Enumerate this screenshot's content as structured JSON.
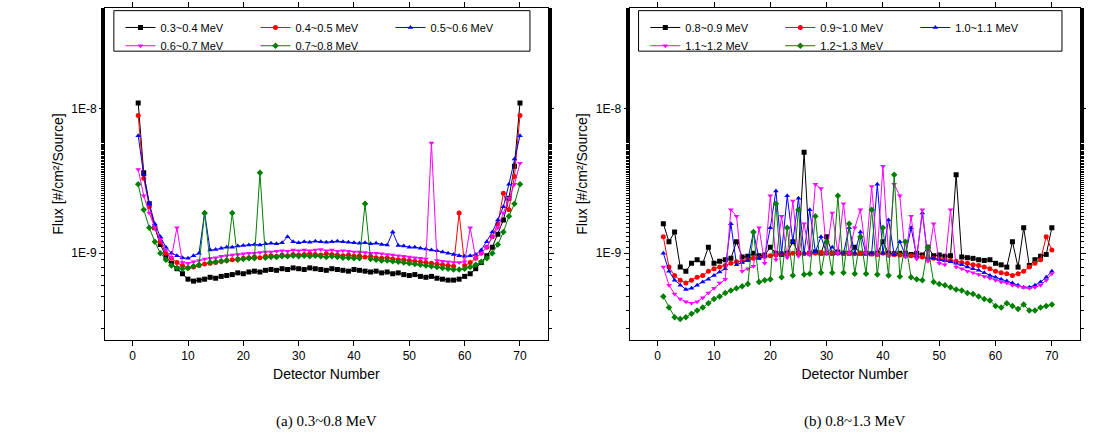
{
  "chart_data": [
    {
      "type": "line",
      "title": "(a) 0.3~0.8 MeV",
      "xlabel": "Detector Number",
      "ylabel": "Flux [#/cm²/Source]",
      "log": "y",
      "grid": false,
      "legend": "top",
      "xlim": [
        -5,
        75
      ],
      "xticks": [
        0,
        10,
        20,
        30,
        40,
        50,
        60,
        70
      ],
      "ylim": [
        2.5e-10,
        5e-08
      ],
      "yticks": [
        {
          "value": 1e-09,
          "label": "1E-9"
        },
        {
          "value": 1e-08,
          "label": "1E-8"
        }
      ],
      "x": [
        1,
        2,
        3,
        4,
        5,
        6,
        7,
        8,
        9,
        10,
        11,
        12,
        13,
        14,
        15,
        16,
        17,
        18,
        19,
        20,
        21,
        22,
        23,
        24,
        25,
        26,
        27,
        28,
        29,
        30,
        31,
        32,
        33,
        34,
        35,
        36,
        37,
        38,
        39,
        40,
        41,
        42,
        43,
        44,
        45,
        46,
        47,
        48,
        49,
        50,
        51,
        52,
        53,
        54,
        55,
        56,
        57,
        58,
        59,
        60,
        61,
        62,
        63,
        64,
        65,
        66,
        67,
        68,
        69,
        70
      ],
      "series": [
        {
          "name": "0.3~0.4 MeV",
          "color": "#000000",
          "marker": "square",
          "values": [
            1.1e-08,
            3.6e-09,
            2.2e-09,
            1.5e-09,
            1.15e-09,
            9.5e-10,
            8.5e-10,
            7.8e-10,
            7.2e-10,
            6.6e-10,
            6.4e-10,
            6.5e-10,
            6.6e-10,
            6.8e-10,
            6.7e-10,
            6.9e-10,
            7e-10,
            7.1e-10,
            7.3e-10,
            7.2e-10,
            7.4e-10,
            7.5e-10,
            7.4e-10,
            7.6e-10,
            7.7e-10,
            7.6e-10,
            7.8e-10,
            7.7e-10,
            7.9e-10,
            7.8e-10,
            7.7e-10,
            7.9e-10,
            7.8e-10,
            7.7e-10,
            7.6e-10,
            7.8e-10,
            7.7e-10,
            7.6e-10,
            7.5e-10,
            7.7e-10,
            7.6e-10,
            7.5e-10,
            7.4e-10,
            7.5e-10,
            7.3e-10,
            7.4e-10,
            7.2e-10,
            7.3e-10,
            7.1e-10,
            7e-10,
            7.1e-10,
            6.9e-10,
            6.8e-10,
            6.9e-10,
            6.7e-10,
            6.6e-10,
            6.5e-10,
            6.5e-10,
            6.6e-10,
            6.9e-10,
            7.2e-10,
            7.8e-10,
            8.6e-10,
            9.6e-10,
            1.1e-09,
            1.35e-09,
            1.7e-09,
            2.4e-09,
            4e-09,
            1.1e-08
          ]
        },
        {
          "name": "0.4~0.5 MeV",
          "color": "#ff0000",
          "marker": "circle",
          "values": [
            9e-09,
            3.3e-09,
            2.1e-09,
            1.5e-09,
            1.2e-09,
            1e-09,
            9.2e-10,
            8.6e-10,
            8.2e-10,
            7.9e-10,
            8e-10,
            8.2e-10,
            8.4e-10,
            8.5e-10,
            8.6e-10,
            8.8e-10,
            8.9e-10,
            9e-10,
            9.1e-10,
            9.2e-10,
            9.3e-10,
            9.4e-10,
            9.3e-10,
            9.5e-10,
            9.6e-10,
            9.5e-10,
            9.7e-10,
            9.6e-10,
            9.8e-10,
            9.7e-10,
            9.8e-10,
            9.9e-10,
            9.8e-10,
            9.7e-10,
            9.9e-10,
            9.8e-10,
            9.7e-10,
            9.6e-10,
            9.7e-10,
            9.5e-10,
            9.6e-10,
            9.4e-10,
            9.5e-10,
            9.3e-10,
            9.2e-10,
            9.3e-10,
            9.1e-10,
            9e-10,
            9e-10,
            8.9e-10,
            8.8e-10,
            8.7e-10,
            8.6e-10,
            8.5e-10,
            8.4e-10,
            8.3e-10,
            8.2e-10,
            8.1e-10,
            1.9e-09,
            8.2e-10,
            8.6e-10,
            9.2e-10,
            1e-09,
            1.1e-09,
            1.3e-09,
            1.6e-09,
            2.6e-09,
            2e-09,
            3.4e-09,
            9e-09
          ]
        },
        {
          "name": "0.5~0.6 MeV",
          "color": "#0000ff",
          "marker": "triangle-up",
          "values": [
            6.5e-09,
            3.5e-09,
            2.2e-09,
            1.6e-09,
            1.3e-09,
            1.1e-09,
            1e-09,
            9.6e-10,
            9.3e-10,
            9.2e-10,
            9.6e-10,
            1e-09,
            1.9e-09,
            1.05e-09,
            1.06e-09,
            1.08e-09,
            1.1e-09,
            1.1e-09,
            1.12e-09,
            1.13e-09,
            1.14e-09,
            1.15e-09,
            1.14e-09,
            1.16e-09,
            1.17e-09,
            1.16e-09,
            1.18e-09,
            1.3e-09,
            1.2e-09,
            1.18e-09,
            1.2e-09,
            1.19e-09,
            1.21e-09,
            1.2e-09,
            1.19e-09,
            1.2e-09,
            1.21e-09,
            1.2e-09,
            1.19e-09,
            1.18e-09,
            1.17e-09,
            1.18e-09,
            1.16e-09,
            1.17e-09,
            1.15e-09,
            1.14e-09,
            1.4e-09,
            1.13e-09,
            1.12e-09,
            1.1e-09,
            1.1e-09,
            1.08e-09,
            1.07e-09,
            1.05e-09,
            1.04e-09,
            1.02e-09,
            1e-09,
            9.8e-10,
            9.6e-10,
            9.5e-10,
            9.6e-10,
            9.8e-10,
            1.05e-09,
            1.2e-09,
            1.4e-09,
            1.7e-09,
            2.1e-09,
            3e-09,
            4.5e-09,
            6.5e-09
          ]
        },
        {
          "name": "0.6~0.7 MeV",
          "color": "#ff00ff",
          "marker": "triangle-down",
          "values": [
            3.8e-09,
            2.5e-09,
            1.9e-09,
            1.5e-09,
            1.25e-09,
            1.05e-09,
            9.3e-10,
            1.5e-09,
            8.6e-10,
            8.5e-10,
            8.7e-10,
            8.9e-10,
            9.1e-10,
            9.2e-10,
            9.3e-10,
            9.5e-10,
            9.6e-10,
            9.7e-10,
            9.8e-10,
            9.9e-10,
            1e-09,
            1e-09,
            1.01e-09,
            1.02e-09,
            1.02e-09,
            1.03e-09,
            1.04e-09,
            1.03e-09,
            1.05e-09,
            1.04e-09,
            1.05e-09,
            1.04e-09,
            1.05e-09,
            1.06e-09,
            1.04e-09,
            1.05e-09,
            1.03e-09,
            1.04e-09,
            1.03e-09,
            1.02e-09,
            1.02e-09,
            1.01e-09,
            1e-09,
            1e-09,
            9.9e-10,
            9.8e-10,
            9.7e-10,
            9.6e-10,
            9.5e-10,
            9.4e-10,
            9.3e-10,
            9.2e-10,
            9.1e-10,
            5.8e-09,
            8.9e-10,
            8.8e-10,
            8.7e-10,
            8.6e-10,
            8.6e-10,
            8.7e-10,
            1.5e-09,
            9.2e-10,
            1e-09,
            1.1e-09,
            1.3e-09,
            1.5e-09,
            1.9e-09,
            2.4e-09,
            3e-09,
            4.2e-09
          ]
        },
        {
          "name": "0.7~0.8 MeV",
          "color": "#008000",
          "marker": "diamond",
          "values": [
            3e-09,
            2e-09,
            1.5e-09,
            1.2e-09,
            1e-09,
            9e-10,
            8.2e-10,
            7.9e-10,
            7.8e-10,
            7.9e-10,
            8.1e-10,
            8.3e-10,
            1.9e-09,
            8.6e-10,
            8.7e-10,
            8.8e-10,
            8.9e-10,
            1.9e-09,
            9e-10,
            9.1e-10,
            9.2e-10,
            9.2e-10,
            3.6e-09,
            9.3e-10,
            9.4e-10,
            9.4e-10,
            9.5e-10,
            9.5e-10,
            9.6e-10,
            9.5e-10,
            9.6e-10,
            9.5e-10,
            9.6e-10,
            9.5e-10,
            9.4e-10,
            9.5e-10,
            9.4e-10,
            9.3e-10,
            9.3e-10,
            9.2e-10,
            9.2e-10,
            2.2e-09,
            9.1e-10,
            9e-10,
            8.9e-10,
            8.9e-10,
            8.8e-10,
            8.7e-10,
            8.6e-10,
            8.5e-10,
            8.4e-10,
            8.3e-10,
            8.2e-10,
            8.1e-10,
            8e-10,
            7.9e-10,
            7.8e-10,
            7.7e-10,
            7.7e-10,
            7.8e-10,
            8e-10,
            8.3e-10,
            8.7e-10,
            9.2e-10,
            1e-09,
            1.15e-09,
            1.4e-09,
            1.8e-09,
            2.2e-09,
            3e-09
          ]
        }
      ]
    },
    {
      "type": "line",
      "title": "(b) 0.8~1.3 MeV",
      "xlabel": "Detector Number",
      "ylabel": "Flux [#/cm²/Source]",
      "log": "y",
      "grid": false,
      "legend": "top",
      "xlim": [
        -5,
        75
      ],
      "xticks": [
        0,
        10,
        20,
        30,
        40,
        50,
        60,
        70
      ],
      "ylim": [
        2.5e-10,
        5e-08
      ],
      "yticks": [
        {
          "value": 1e-09,
          "label": "1E-9"
        },
        {
          "value": 1e-08,
          "label": "1E-8"
        }
      ],
      "x": [
        1,
        2,
        3,
        4,
        5,
        6,
        7,
        8,
        9,
        10,
        11,
        12,
        13,
        14,
        15,
        16,
        17,
        18,
        19,
        20,
        21,
        22,
        23,
        24,
        25,
        26,
        27,
        28,
        29,
        30,
        31,
        32,
        33,
        34,
        35,
        36,
        37,
        38,
        39,
        40,
        41,
        42,
        43,
        44,
        45,
        46,
        47,
        48,
        49,
        50,
        51,
        52,
        53,
        54,
        55,
        56,
        57,
        58,
        59,
        60,
        61,
        62,
        63,
        64,
        65,
        66,
        67,
        68,
        69,
        70
      ],
      "series": [
        {
          "name": "0.8~0.9 MeV",
          "color": "#000000",
          "marker": "square",
          "values": [
            1.6e-09,
            1.2e-09,
            1.4e-09,
            8e-10,
            7.5e-10,
            8.5e-10,
            9e-10,
            8.5e-10,
            1.1e-09,
            8.5e-10,
            8.8e-10,
            9e-10,
            9.2e-10,
            1.2e-09,
            9.4e-10,
            9.5e-10,
            1e-09,
            9.6e-10,
            9.7e-10,
            1.1e-09,
            1e-09,
            9.8e-10,
            1e-09,
            1.2e-09,
            1e-09,
            5e-09,
            1e-09,
            1.02e-09,
            1e-09,
            1.3e-09,
            1e-09,
            1.02e-09,
            1e-09,
            1e-09,
            1.1e-09,
            1e-09,
            1e-09,
            9.9e-10,
            1e-09,
            1.2e-09,
            1e-09,
            9.9e-10,
            1e-09,
            1e-09,
            9.8e-10,
            1e-09,
            9.7e-10,
            1.1e-09,
            9.6e-10,
            9.7e-10,
            9.5e-10,
            9.6e-10,
            3.5e-09,
            9.4e-10,
            9.3e-10,
            9.2e-10,
            9e-10,
            8.9e-10,
            9e-10,
            8.5e-10,
            8.3e-10,
            8e-10,
            1.2e-09,
            8e-10,
            1.5e-09,
            8.2e-10,
            9e-10,
            9.5e-10,
            9.8e-10,
            1.5e-09
          ]
        },
        {
          "name": "0.9~1.0 MeV",
          "color": "#ff0000",
          "marker": "circle",
          "values": [
            1.3e-09,
            8e-10,
            7e-10,
            6.5e-10,
            6.2e-10,
            6.5e-10,
            6.8e-10,
            7e-10,
            7.5e-10,
            7.8e-10,
            8e-10,
            8.2e-10,
            8.5e-10,
            8.7e-10,
            8.8e-10,
            9e-10,
            9.2e-10,
            9.3e-10,
            9.5e-10,
            9.6e-10,
            9.7e-10,
            1e-09,
            9.8e-10,
            1e-09,
            1e-09,
            9.9e-10,
            1e-09,
            1e-09,
            1.01e-09,
            1e-09,
            1e-09,
            1e-09,
            1e-09,
            1e-09,
            9.9e-10,
            1e-09,
            1e-09,
            9.9e-10,
            9.8e-10,
            1e-09,
            9.7e-10,
            9.8e-10,
            9.7e-10,
            9.6e-10,
            9.6e-10,
            9.5e-10,
            9.4e-10,
            9.3e-10,
            9.2e-10,
            9.1e-10,
            9e-10,
            8.9e-10,
            8.8e-10,
            8.6e-10,
            8.5e-10,
            8.3e-10,
            8.2e-10,
            8e-10,
            7.8e-10,
            7.5e-10,
            7.3e-10,
            7.2e-10,
            7e-10,
            7.2e-10,
            7.5e-10,
            8e-10,
            8.5e-10,
            9e-10,
            1.3e-09,
            1.05e-09
          ]
        },
        {
          "name": "1.0~1.1 MeV",
          "color": "#0000ff",
          "marker": "triangle-up",
          "values": [
            1e-09,
            7.5e-10,
            6.5e-10,
            6e-10,
            5.6e-10,
            5.7e-10,
            6e-10,
            6.3e-10,
            6.6e-10,
            7e-10,
            7.4e-10,
            7.8e-10,
            1.6e-09,
            8.3e-10,
            8.6e-10,
            8.9e-10,
            1.4e-09,
            9.2e-10,
            9.5e-10,
            1.5e-09,
            2.7e-09,
            1e-09,
            2.5e-09,
            1.2e-09,
            2.4e-09,
            1e-09,
            2e-09,
            1.02e-09,
            1.3e-09,
            1e-09,
            1.1e-09,
            1e-09,
            1e-09,
            1.5e-09,
            1e-09,
            1.4e-09,
            9.9e-10,
            1e-09,
            3e-09,
            1e-09,
            1.7e-09,
            9.8e-10,
            1.2e-09,
            9.7e-10,
            1.5e-09,
            9.5e-10,
            1.9e-09,
            9.3e-10,
            9.2e-10,
            9e-10,
            8.9e-10,
            8.7e-10,
            8.5e-10,
            8.3e-10,
            8e-10,
            7.8e-10,
            7.6e-10,
            7.3e-10,
            7e-10,
            6.8e-10,
            6.6e-10,
            6.4e-10,
            6.2e-10,
            6e-10,
            5.8e-10,
            5.8e-10,
            6e-10,
            6.3e-10,
            6.8e-10,
            7.5e-10
          ]
        },
        {
          "name": "1.1~1.2 MeV",
          "color": "#ff00ff",
          "marker": "triangle-down",
          "values": [
            8e-10,
            6e-10,
            5.2e-10,
            4.8e-10,
            4.6e-10,
            4.5e-10,
            4.6e-10,
            4.9e-10,
            5.3e-10,
            5.7e-10,
            6.2e-10,
            6.6e-10,
            2e-09,
            1.8e-09,
            7.5e-10,
            7.8e-10,
            8.1e-10,
            1.5e-09,
            8.5e-10,
            2.5e-09,
            9e-10,
            1.8e-09,
            9.3e-10,
            2.3e-09,
            9.5e-10,
            1.6e-09,
            9.7e-10,
            3e-09,
            2.8e-09,
            1e-09,
            1.9e-09,
            1e-09,
            2.2e-09,
            1e-09,
            1.5e-09,
            2e-09,
            1e-09,
            2.9e-09,
            9.8e-10,
            4e-09,
            9.6e-10,
            3e-09,
            2.5e-09,
            9.4e-10,
            1.8e-09,
            9.1e-10,
            2e-09,
            8.8e-10,
            1.6e-09,
            8.5e-10,
            8.3e-10,
            2e-09,
            8e-10,
            7.8e-10,
            7.5e-10,
            7.3e-10,
            7.1e-10,
            6.9e-10,
            6.7e-10,
            6.5e-10,
            6.3e-10,
            6.2e-10,
            6e-10,
            5.9e-10,
            5.8e-10,
            5.7e-10,
            5.8e-10,
            6e-10,
            6.5e-10,
            7.2e-10
          ]
        },
        {
          "name": "1.2~1.3 MeV",
          "color": "#008000",
          "marker": "diamond",
          "values": [
            5e-10,
            4.2e-10,
            3.6e-10,
            3.5e-10,
            3.6e-10,
            3.8e-10,
            4e-10,
            4.2e-10,
            4.5e-10,
            4.8e-10,
            5e-10,
            5.3e-10,
            5.5e-10,
            5.7e-10,
            5.9e-10,
            6.1e-10,
            1.4e-09,
            6.3e-10,
            6.5e-10,
            6.6e-10,
            2.2e-09,
            6.8e-10,
            1.5e-09,
            7e-10,
            2e-09,
            7.1e-10,
            7.2e-10,
            1.8e-09,
            7.3e-10,
            1.2e-09,
            7.3e-10,
            2.5e-09,
            7.3e-10,
            1.6e-09,
            7.2e-10,
            1.3e-09,
            7.2e-10,
            2e-09,
            7.1e-10,
            1.5e-09,
            7e-10,
            3.5e-09,
            6.9e-10,
            1.2e-09,
            6.8e-10,
            6.6e-10,
            6.5e-10,
            1.1e-09,
            6.3e-10,
            6.1e-10,
            6e-10,
            5.8e-10,
            5.6e-10,
            5.5e-10,
            5.3e-10,
            5.2e-10,
            5e-10,
            4.8e-10,
            4.7e-10,
            4.3e-10,
            4.2e-10,
            4.5e-10,
            4.3e-10,
            4.1e-10,
            4.4e-10,
            4e-10,
            4e-10,
            4.2e-10,
            4.3e-10,
            4.4e-10
          ]
        }
      ]
    }
  ]
}
